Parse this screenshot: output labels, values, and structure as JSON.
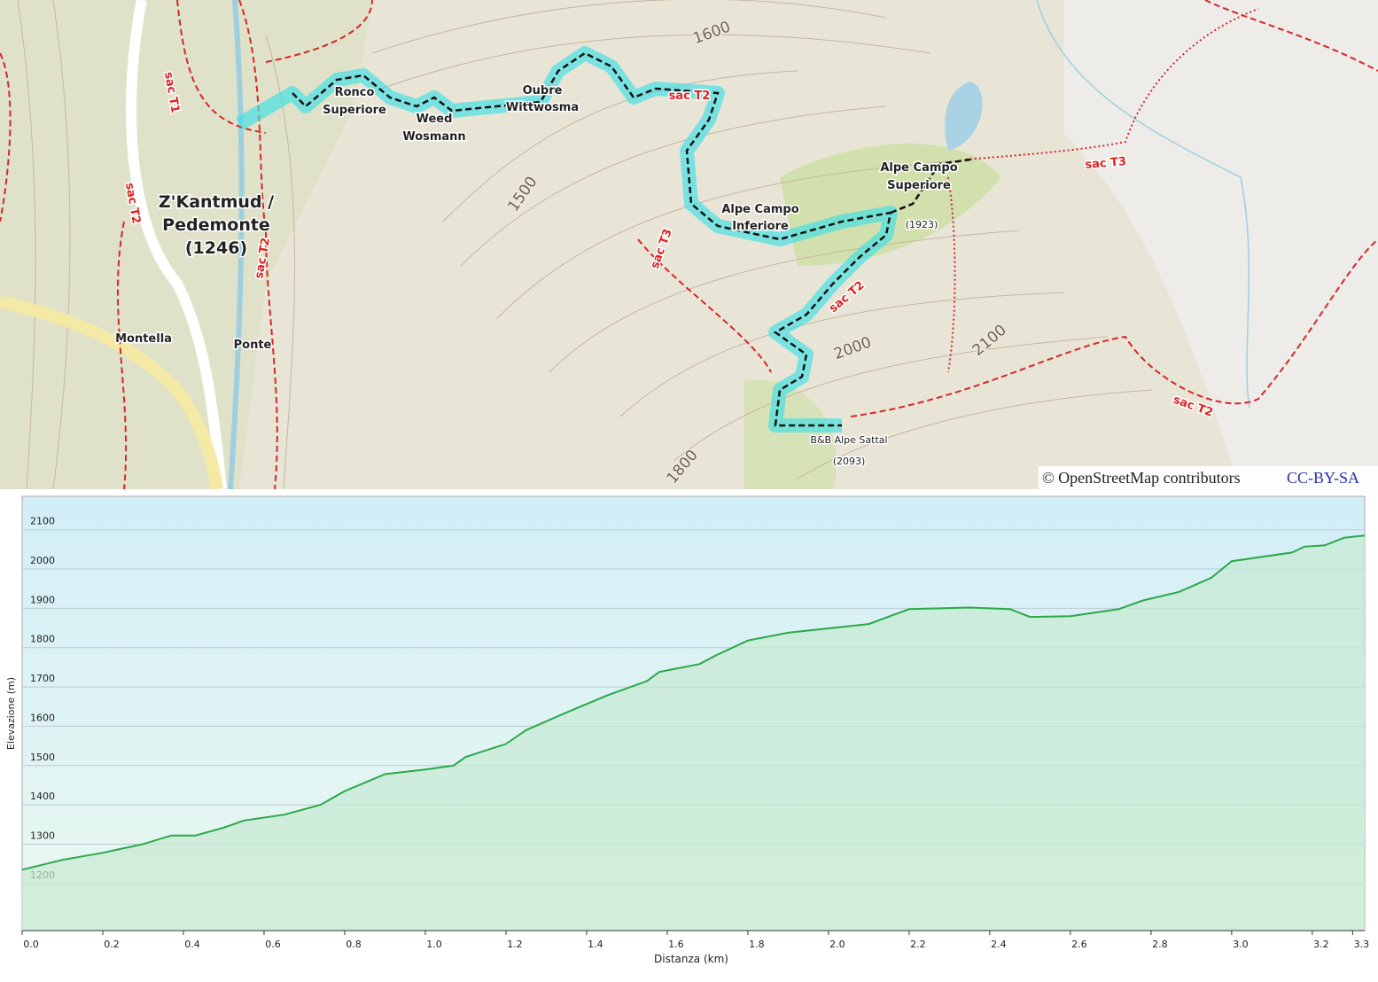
{
  "map": {
    "labels": {
      "village": [
        "Z'Kantmud /",
        "Pedemonte",
        "(1246)"
      ],
      "ronco": [
        "Ronco",
        "Superiore"
      ],
      "weed": [
        "Weed",
        "Wosmann"
      ],
      "oubre": [
        "Oubre",
        "Wittwosma"
      ],
      "inferiore": [
        "Alpe Campo",
        "Inferiore"
      ],
      "superiore": [
        "Alpe Campo",
        "Superiore"
      ],
      "superiore_ele": "(1923)",
      "sattal": "B&B Alpe Sattal",
      "sattal_ele": "(2093)",
      "montella": "Montella",
      "ponte": "Ponte",
      "contours": [
        "1600",
        "1500",
        "2000",
        "2100",
        "1800"
      ],
      "trails": [
        "sac T2",
        "sac T3",
        "sac T2",
        "sac T2",
        "sac T3",
        "sac T2",
        "sac T1",
        "sac T2"
      ]
    },
    "attribution": "© OpenStreetMap contributors",
    "license": "CC-BY-SA"
  },
  "chart_data": {
    "type": "line",
    "color": "#2aa84a",
    "xlabel": "Distanza  (km)",
    "ylabel": "Elevazione (m)",
    "x": [
      0.0,
      0.1,
      0.2,
      0.3,
      0.37,
      0.43,
      0.5,
      0.55,
      0.65,
      0.74,
      0.8,
      0.9,
      1.0,
      1.07,
      1.1,
      1.2,
      1.25,
      1.35,
      1.45,
      1.55,
      1.58,
      1.68,
      1.72,
      1.8,
      1.9,
      2.1,
      2.2,
      2.35,
      2.45,
      2.5,
      2.6,
      2.72,
      2.78,
      2.87,
      2.95,
      3.0,
      3.15,
      3.18,
      3.23,
      3.28,
      3.33
    ],
    "values": [
      1235,
      1260,
      1278,
      1300,
      1322,
      1322,
      1342,
      1360,
      1375,
      1400,
      1435,
      1478,
      1490,
      1500,
      1522,
      1555,
      1590,
      1635,
      1678,
      1715,
      1738,
      1758,
      1780,
      1818,
      1838,
      1860,
      1898,
      1902,
      1898,
      1878,
      1880,
      1898,
      1920,
      1942,
      1978,
      2020,
      2042,
      2057,
      2060,
      2080,
      2085
    ],
    "xlim": [
      0,
      3.33
    ],
    "ylim": [
      1080,
      2185
    ],
    "xticks": [
      {
        "value": 0,
        "label": "0.0"
      },
      0.2,
      0.4,
      0.6,
      0.8,
      {
        "value": 1,
        "label": "1.0"
      },
      1.2,
      1.4,
      1.6,
      1.8,
      {
        "value": 2,
        "label": "2.0"
      },
      2.2,
      2.4,
      2.6,
      2.8,
      {
        "value": 3,
        "label": "3.0"
      },
      3.2,
      3.3
    ],
    "yticks": [
      1200,
      1300,
      1400,
      1500,
      1600,
      1700,
      1800,
      1900,
      2000,
      2100
    ],
    "grid": true
  }
}
